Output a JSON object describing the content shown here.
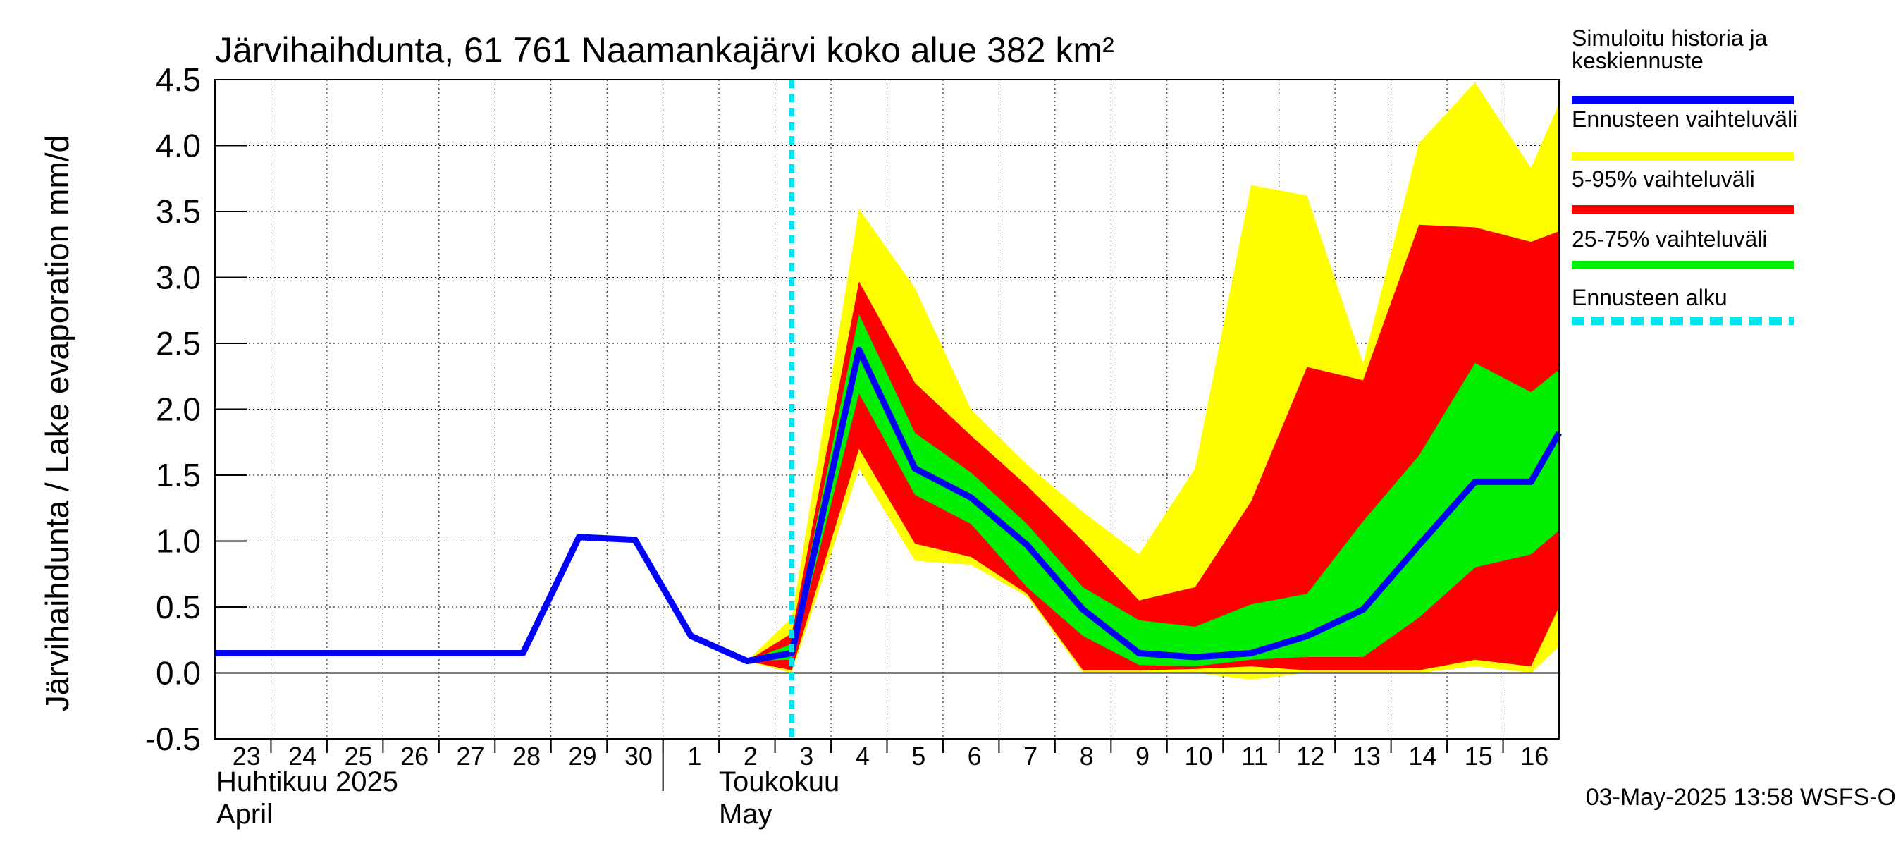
{
  "chart_data": {
    "type": "area",
    "title": "Järvihaihdunta, 61 761 Naamankajärvi koko alue 382 km²",
    "ylabel": "Järvihaihdunta / Lake evaporation   mm/d",
    "ylim": [
      -0.5,
      4.5
    ],
    "yticks": [
      "-0.5",
      "0.0",
      "0.5",
      "1.0",
      "1.5",
      "2.0",
      "2.5",
      "3.0",
      "3.5",
      "4.0",
      "4.5"
    ],
    "xlim": [
      -0.5,
      23.5
    ],
    "grid": true,
    "x_day_labels": [
      "23",
      "24",
      "25",
      "26",
      "27",
      "28",
      "29",
      "30",
      "1",
      "2",
      "3",
      "4",
      "5",
      "6",
      "7",
      "8",
      "9",
      "10",
      "11",
      "12",
      "13",
      "14",
      "15",
      "16"
    ],
    "month_labels": {
      "april_fi": "Huhtikuu  2025",
      "april_en": "April",
      "may_fi": "Toukokuu",
      "may_en": "May"
    },
    "forecast_start": 9.8,
    "series": [
      {
        "name": "Simuloitu historia ja keskiennuste",
        "x": [
          -0.5,
          0,
          1,
          2,
          3,
          4,
          5,
          6,
          7,
          8,
          9,
          9.8,
          11,
          12,
          13,
          14,
          15,
          16,
          17,
          18,
          19,
          20,
          21,
          22,
          23,
          23.5
        ],
        "values": [
          0.15,
          0.15,
          0.15,
          0.15,
          0.15,
          0.15,
          0.15,
          1.03,
          1.01,
          0.28,
          0.09,
          0.15,
          2.45,
          1.55,
          1.33,
          0.97,
          0.48,
          0.15,
          0.12,
          0.15,
          0.28,
          0.48,
          0.97,
          1.45,
          1.45,
          1.82
        ]
      }
    ],
    "bands": [
      {
        "name": "Ennusteen vaihteluväli",
        "x": [
          9,
          9.8,
          11,
          12,
          13,
          14,
          15,
          16,
          17,
          18,
          19,
          20,
          21,
          22,
          23,
          24
        ],
        "low": [
          0.09,
          0.0,
          1.55,
          0.85,
          0.82,
          0.58,
          0.0,
          0.0,
          0.0,
          -0.05,
          0.0,
          0.0,
          0.0,
          0.05,
          0.0,
          0.2
        ],
        "high": [
          0.09,
          0.42,
          3.52,
          2.92,
          2.0,
          1.58,
          1.22,
          0.9,
          1.55,
          3.7,
          3.62,
          2.35,
          4.02,
          4.48,
          3.83,
          4.32
        ]
      },
      {
        "name": "5-95% vaihteluväli",
        "x": [
          9,
          9.8,
          11,
          12,
          13,
          14,
          15,
          16,
          17,
          18,
          19,
          20,
          21,
          22,
          23,
          24
        ],
        "low": [
          0.09,
          0.02,
          1.7,
          0.98,
          0.88,
          0.6,
          0.02,
          0.02,
          0.03,
          0.05,
          0.02,
          0.02,
          0.02,
          0.1,
          0.05,
          0.5
        ],
        "high": [
          0.09,
          0.3,
          2.97,
          2.2,
          1.8,
          1.42,
          1.0,
          0.55,
          0.65,
          1.3,
          2.32,
          2.22,
          3.4,
          3.38,
          3.27,
          3.35
        ]
      },
      {
        "name": "25-75% vaihteluväli",
        "x": [
          9,
          9.8,
          11,
          12,
          13,
          14,
          15,
          16,
          17,
          18,
          19,
          20,
          21,
          22,
          23,
          24
        ],
        "low": [
          0.09,
          0.1,
          2.12,
          1.35,
          1.13,
          0.65,
          0.28,
          0.06,
          0.05,
          0.1,
          0.12,
          0.12,
          0.42,
          0.8,
          0.9,
          1.08
        ],
        "high": [
          0.09,
          0.22,
          2.72,
          1.82,
          1.52,
          1.13,
          0.65,
          0.4,
          0.35,
          0.52,
          0.6,
          1.15,
          1.65,
          2.35,
          2.13,
          2.3
        ]
      }
    ],
    "legend": [
      {
        "label": "Simuloitu historia ja keskiennuste",
        "color": "#0000ff",
        "style": "line"
      },
      {
        "label": "Ennusteen vaihteluväli",
        "color": "#ffff00",
        "style": "line"
      },
      {
        "label": "5-95% vaihteluväli",
        "color": "#ff0000",
        "style": "line"
      },
      {
        "label": "25-75% vaihteluväli",
        "color": "#00ee00",
        "style": "line"
      },
      {
        "label": "Ennusteen alku",
        "color": "#00e5ee",
        "style": "dashed"
      }
    ],
    "legend_position": "right",
    "footer": "03-May-2025 13:58 WSFS-O"
  }
}
